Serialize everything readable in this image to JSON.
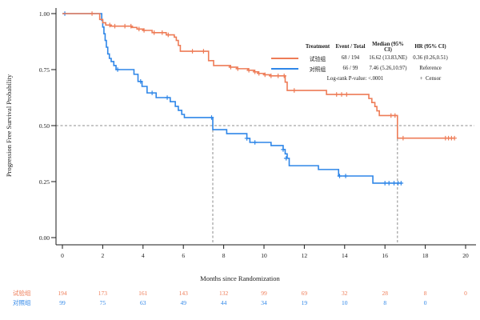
{
  "chart_data": {
    "type": "line",
    "subtype": "kaplan-meier-step",
    "title": "",
    "xlabel": "Months since Randomization",
    "ylabel": "Progression Free Survival Probability",
    "xlim": [
      0,
      20
    ],
    "ylim": [
      0,
      1
    ],
    "x_ticks": [
      0,
      2,
      4,
      6,
      8,
      10,
      12,
      14,
      16,
      18,
      20
    ],
    "y_ticks": [
      1.0,
      0.75,
      0.5,
      0.25,
      0.0
    ],
    "y_tick_labels": [
      "1.00",
      "0.75",
      "0.50",
      "0.25",
      "0.00"
    ],
    "grid": false,
    "reference_lines": {
      "h_prob": 0.5,
      "v_months": [
        7.46,
        16.62
      ],
      "color": "#8c8c8c"
    },
    "series": [
      {
        "name": "试验组",
        "color": "#EE7C57",
        "end": 19.45,
        "steps": [
          [
            0,
            1.0
          ],
          [
            1.85,
            0.974
          ],
          [
            2.0,
            0.959
          ],
          [
            2.15,
            0.949
          ],
          [
            2.4,
            0.944
          ],
          [
            3.45,
            0.938
          ],
          [
            3.7,
            0.931
          ],
          [
            4.0,
            0.925
          ],
          [
            4.45,
            0.915
          ],
          [
            5.15,
            0.905
          ],
          [
            5.55,
            0.895
          ],
          [
            5.65,
            0.88
          ],
          [
            5.75,
            0.858
          ],
          [
            5.85,
            0.832
          ],
          [
            7.25,
            0.79
          ],
          [
            7.5,
            0.768
          ],
          [
            8.3,
            0.761
          ],
          [
            8.65,
            0.754
          ],
          [
            9.2,
            0.747
          ],
          [
            9.5,
            0.74
          ],
          [
            9.7,
            0.733
          ],
          [
            10.0,
            0.727
          ],
          [
            10.3,
            0.722
          ],
          [
            11.05,
            0.694
          ],
          [
            11.15,
            0.657
          ],
          [
            13.1,
            0.639
          ],
          [
            15.2,
            0.621
          ],
          [
            15.35,
            0.603
          ],
          [
            15.5,
            0.585
          ],
          [
            15.6,
            0.566
          ],
          [
            15.72,
            0.545
          ],
          [
            16.62,
            0.444
          ]
        ],
        "censors": [
          [
            1.47,
            1.0
          ],
          [
            2.35,
            0.949
          ],
          [
            2.6,
            0.944
          ],
          [
            3.1,
            0.944
          ],
          [
            3.4,
            0.944
          ],
          [
            3.8,
            0.931
          ],
          [
            4.05,
            0.925
          ],
          [
            4.55,
            0.915
          ],
          [
            4.95,
            0.915
          ],
          [
            5.25,
            0.905
          ],
          [
            6.45,
            0.832
          ],
          [
            7.0,
            0.832
          ],
          [
            8.35,
            0.761
          ],
          [
            8.7,
            0.754
          ],
          [
            9.25,
            0.747
          ],
          [
            9.55,
            0.74
          ],
          [
            9.75,
            0.733
          ],
          [
            10.05,
            0.727
          ],
          [
            10.35,
            0.722
          ],
          [
            10.7,
            0.722
          ],
          [
            11.0,
            0.722
          ],
          [
            11.5,
            0.657
          ],
          [
            13.6,
            0.639
          ],
          [
            13.85,
            0.639
          ],
          [
            14.1,
            0.639
          ],
          [
            16.3,
            0.545
          ],
          [
            16.5,
            0.545
          ],
          [
            16.9,
            0.444
          ],
          [
            19.0,
            0.444
          ],
          [
            19.15,
            0.444
          ],
          [
            19.3,
            0.444
          ],
          [
            19.45,
            0.444
          ]
        ]
      },
      {
        "name": "对照组",
        "color": "#2E86E8",
        "end": 16.85,
        "steps": [
          [
            0,
            1.0
          ],
          [
            1.95,
            0.97
          ],
          [
            2.0,
            0.94
          ],
          [
            2.06,
            0.91
          ],
          [
            2.12,
            0.88
          ],
          [
            2.18,
            0.85
          ],
          [
            2.25,
            0.82
          ],
          [
            2.33,
            0.8
          ],
          [
            2.42,
            0.786
          ],
          [
            2.55,
            0.768
          ],
          [
            2.66,
            0.75
          ],
          [
            3.55,
            0.729
          ],
          [
            3.75,
            0.697
          ],
          [
            3.95,
            0.675
          ],
          [
            4.2,
            0.646
          ],
          [
            4.65,
            0.625
          ],
          [
            5.35,
            0.607
          ],
          [
            5.6,
            0.586
          ],
          [
            5.75,
            0.568
          ],
          [
            5.92,
            0.55
          ],
          [
            6.05,
            0.536
          ],
          [
            7.46,
            0.482
          ],
          [
            8.15,
            0.464
          ],
          [
            9.15,
            0.443
          ],
          [
            9.3,
            0.425
          ],
          [
            10.35,
            0.411
          ],
          [
            10.95,
            0.393
          ],
          [
            11.05,
            0.374
          ],
          [
            11.15,
            0.354
          ],
          [
            11.25,
            0.321
          ],
          [
            12.7,
            0.304
          ],
          [
            13.7,
            0.275
          ],
          [
            15.4,
            0.243
          ]
        ],
        "censors": [
          [
            0.12,
            1.0
          ],
          [
            2.74,
            0.75
          ],
          [
            3.88,
            0.697
          ],
          [
            4.45,
            0.646
          ],
          [
            5.2,
            0.625
          ],
          [
            7.4,
            0.536
          ],
          [
            9.15,
            0.443
          ],
          [
            9.55,
            0.425
          ],
          [
            10.95,
            0.393
          ],
          [
            11.1,
            0.354
          ],
          [
            13.75,
            0.275
          ],
          [
            14.05,
            0.275
          ],
          [
            16.0,
            0.243
          ],
          [
            16.2,
            0.243
          ],
          [
            16.45,
            0.243
          ],
          [
            16.65,
            0.243
          ],
          [
            16.8,
            0.243
          ]
        ]
      }
    ]
  },
  "legend": {
    "header": {
      "treatment": "Treatment",
      "event_total": "Event / Total",
      "median": "Median (95% CI)",
      "hr": "HR (95% CI)"
    },
    "rows": [
      {
        "label": "试验组",
        "event_total": "68 / 194",
        "median": "16.62 (13.83,NE)",
        "hr": "0.36 (0.26,0.51)"
      },
      {
        "label": "对照组",
        "event_total": "66 / 99",
        "median": "7.46 (5.26,10.97)",
        "hr": "Reference"
      }
    ],
    "logrank": "Log-rank P-value: <.0001",
    "censor_note": "+  Censor"
  },
  "risk_table": {
    "months": [
      0,
      2,
      4,
      6,
      8,
      10,
      12,
      14,
      16,
      18,
      20
    ],
    "rows": [
      {
        "label": "试验组",
        "color": "#EE7C57",
        "values": [
          194,
          173,
          161,
          143,
          132,
          99,
          69,
          32,
          28,
          8,
          0
        ]
      },
      {
        "label": "对照组",
        "color": "#2E86E8",
        "values": [
          99,
          75,
          63,
          49,
          44,
          34,
          19,
          10,
          8,
          0,
          null
        ]
      }
    ]
  }
}
